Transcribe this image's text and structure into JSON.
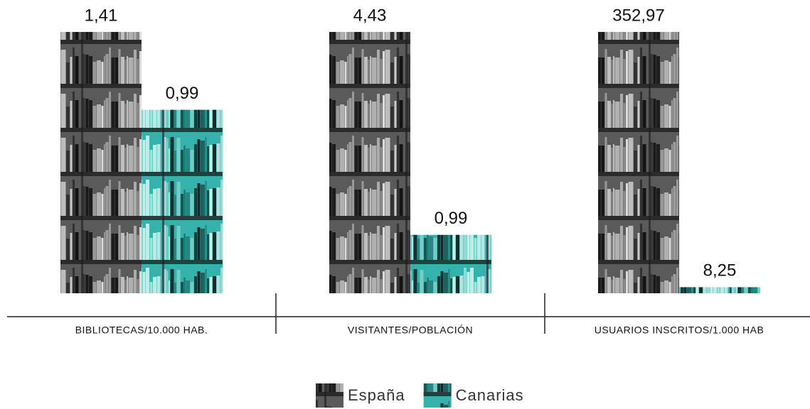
{
  "chart_data": {
    "type": "bar",
    "categories": [
      "BIBLIOTECAS/10.000 HAB.",
      "VISITANTES/POBLACIÓN",
      "USUARIOS INSCRITOS/1.000 HAB"
    ],
    "series": [
      {
        "name": "España",
        "color": "#5a5a5a",
        "values": [
          1.41,
          4.43,
          352.97
        ],
        "value_labels": [
          "1,41",
          "4,43",
          "352,97"
        ]
      },
      {
        "name": "Canarias",
        "color": "#34b3ad",
        "values": [
          0.99,
          0.99,
          8.25
        ],
        "value_labels": [
          "0,99",
          "0,99",
          "8,25"
        ]
      }
    ]
  }
}
